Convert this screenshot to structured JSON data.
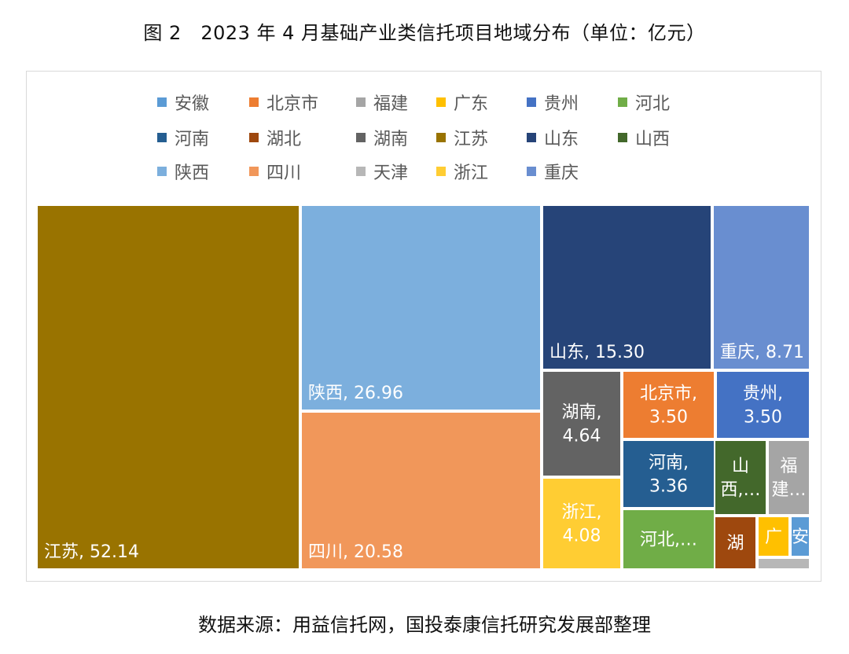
{
  "title": "图 2　2023 年 4 月基础产业类信托项目地域分布（单位：亿元）",
  "source": "数据来源：用益信托网，国投泰康信托研究发展部整理",
  "chart_data": {
    "type": "treemap",
    "title": "图 2　2023 年 4 月基础产业类信托项目地域分布（单位：亿元）",
    "unit": "亿元",
    "legend_position": "top",
    "legend": [
      {
        "name": "安徽",
        "color": "#5B9BD5"
      },
      {
        "name": "北京市",
        "color": "#ED7D31"
      },
      {
        "name": "福建",
        "color": "#A5A5A5"
      },
      {
        "name": "广东",
        "color": "#FFC000"
      },
      {
        "name": "贵州",
        "color": "#4472C4"
      },
      {
        "name": "河北",
        "color": "#70AD47"
      },
      {
        "name": "河南",
        "color": "#255E91"
      },
      {
        "name": "湖北",
        "color": "#9E480E"
      },
      {
        "name": "湖南",
        "color": "#636363"
      },
      {
        "name": "江苏",
        "color": "#997300"
      },
      {
        "name": "山东",
        "color": "#264478"
      },
      {
        "name": "山西",
        "color": "#43682B"
      },
      {
        "name": "陕西",
        "color": "#7CAFDD"
      },
      {
        "name": "四川",
        "color": "#F1975A"
      },
      {
        "name": "天津",
        "color": "#B7B7B7"
      },
      {
        "name": "浙江",
        "color": "#FFCD33"
      },
      {
        "name": "重庆",
        "color": "#698ED0"
      }
    ],
    "items": [
      {
        "name": "江苏",
        "value": 52.14,
        "label": "江苏, 52.14",
        "color": "#997300"
      },
      {
        "name": "陕西",
        "value": 26.96,
        "label": "陕西, 26.96",
        "color": "#7CAFDD"
      },
      {
        "name": "四川",
        "value": 20.58,
        "label": "四川, 20.58",
        "color": "#F1975A"
      },
      {
        "name": "山东",
        "value": 15.3,
        "label": "山东, 15.30",
        "color": "#264478"
      },
      {
        "name": "重庆",
        "value": 8.71,
        "label": "重庆, 8.71",
        "color": "#698ED0"
      },
      {
        "name": "湖南",
        "value": 4.64,
        "label": "湖南,\n4.64",
        "color": "#636363"
      },
      {
        "name": "浙江",
        "value": 4.08,
        "label": "浙江,\n4.08",
        "color": "#FFCD33"
      },
      {
        "name": "北京市",
        "value": 3.5,
        "label": "北京市,\n3.50",
        "color": "#ED7D31"
      },
      {
        "name": "贵州",
        "value": 3.5,
        "label": "贵州,\n3.50",
        "color": "#4472C4"
      },
      {
        "name": "河南",
        "value": 3.36,
        "label": "河南,\n3.36",
        "color": "#255E91"
      },
      {
        "name": "河北",
        "value": null,
        "label": "河北,…",
        "color": "#70AD47"
      },
      {
        "name": "山西",
        "value": null,
        "label": "山\n西,…",
        "color": "#43682B"
      },
      {
        "name": "福建",
        "value": null,
        "label": "福\n建…",
        "color": "#A5A5A5"
      },
      {
        "name": "湖北",
        "value": null,
        "label": "湖",
        "color": "#9E480E"
      },
      {
        "name": "广东",
        "value": null,
        "label": "广",
        "color": "#FFC000"
      },
      {
        "name": "安徽",
        "value": null,
        "label": "安",
        "color": "#5B9BD5"
      },
      {
        "name": "天津",
        "value": null,
        "label": "",
        "color": "#B7B7B7"
      }
    ]
  }
}
